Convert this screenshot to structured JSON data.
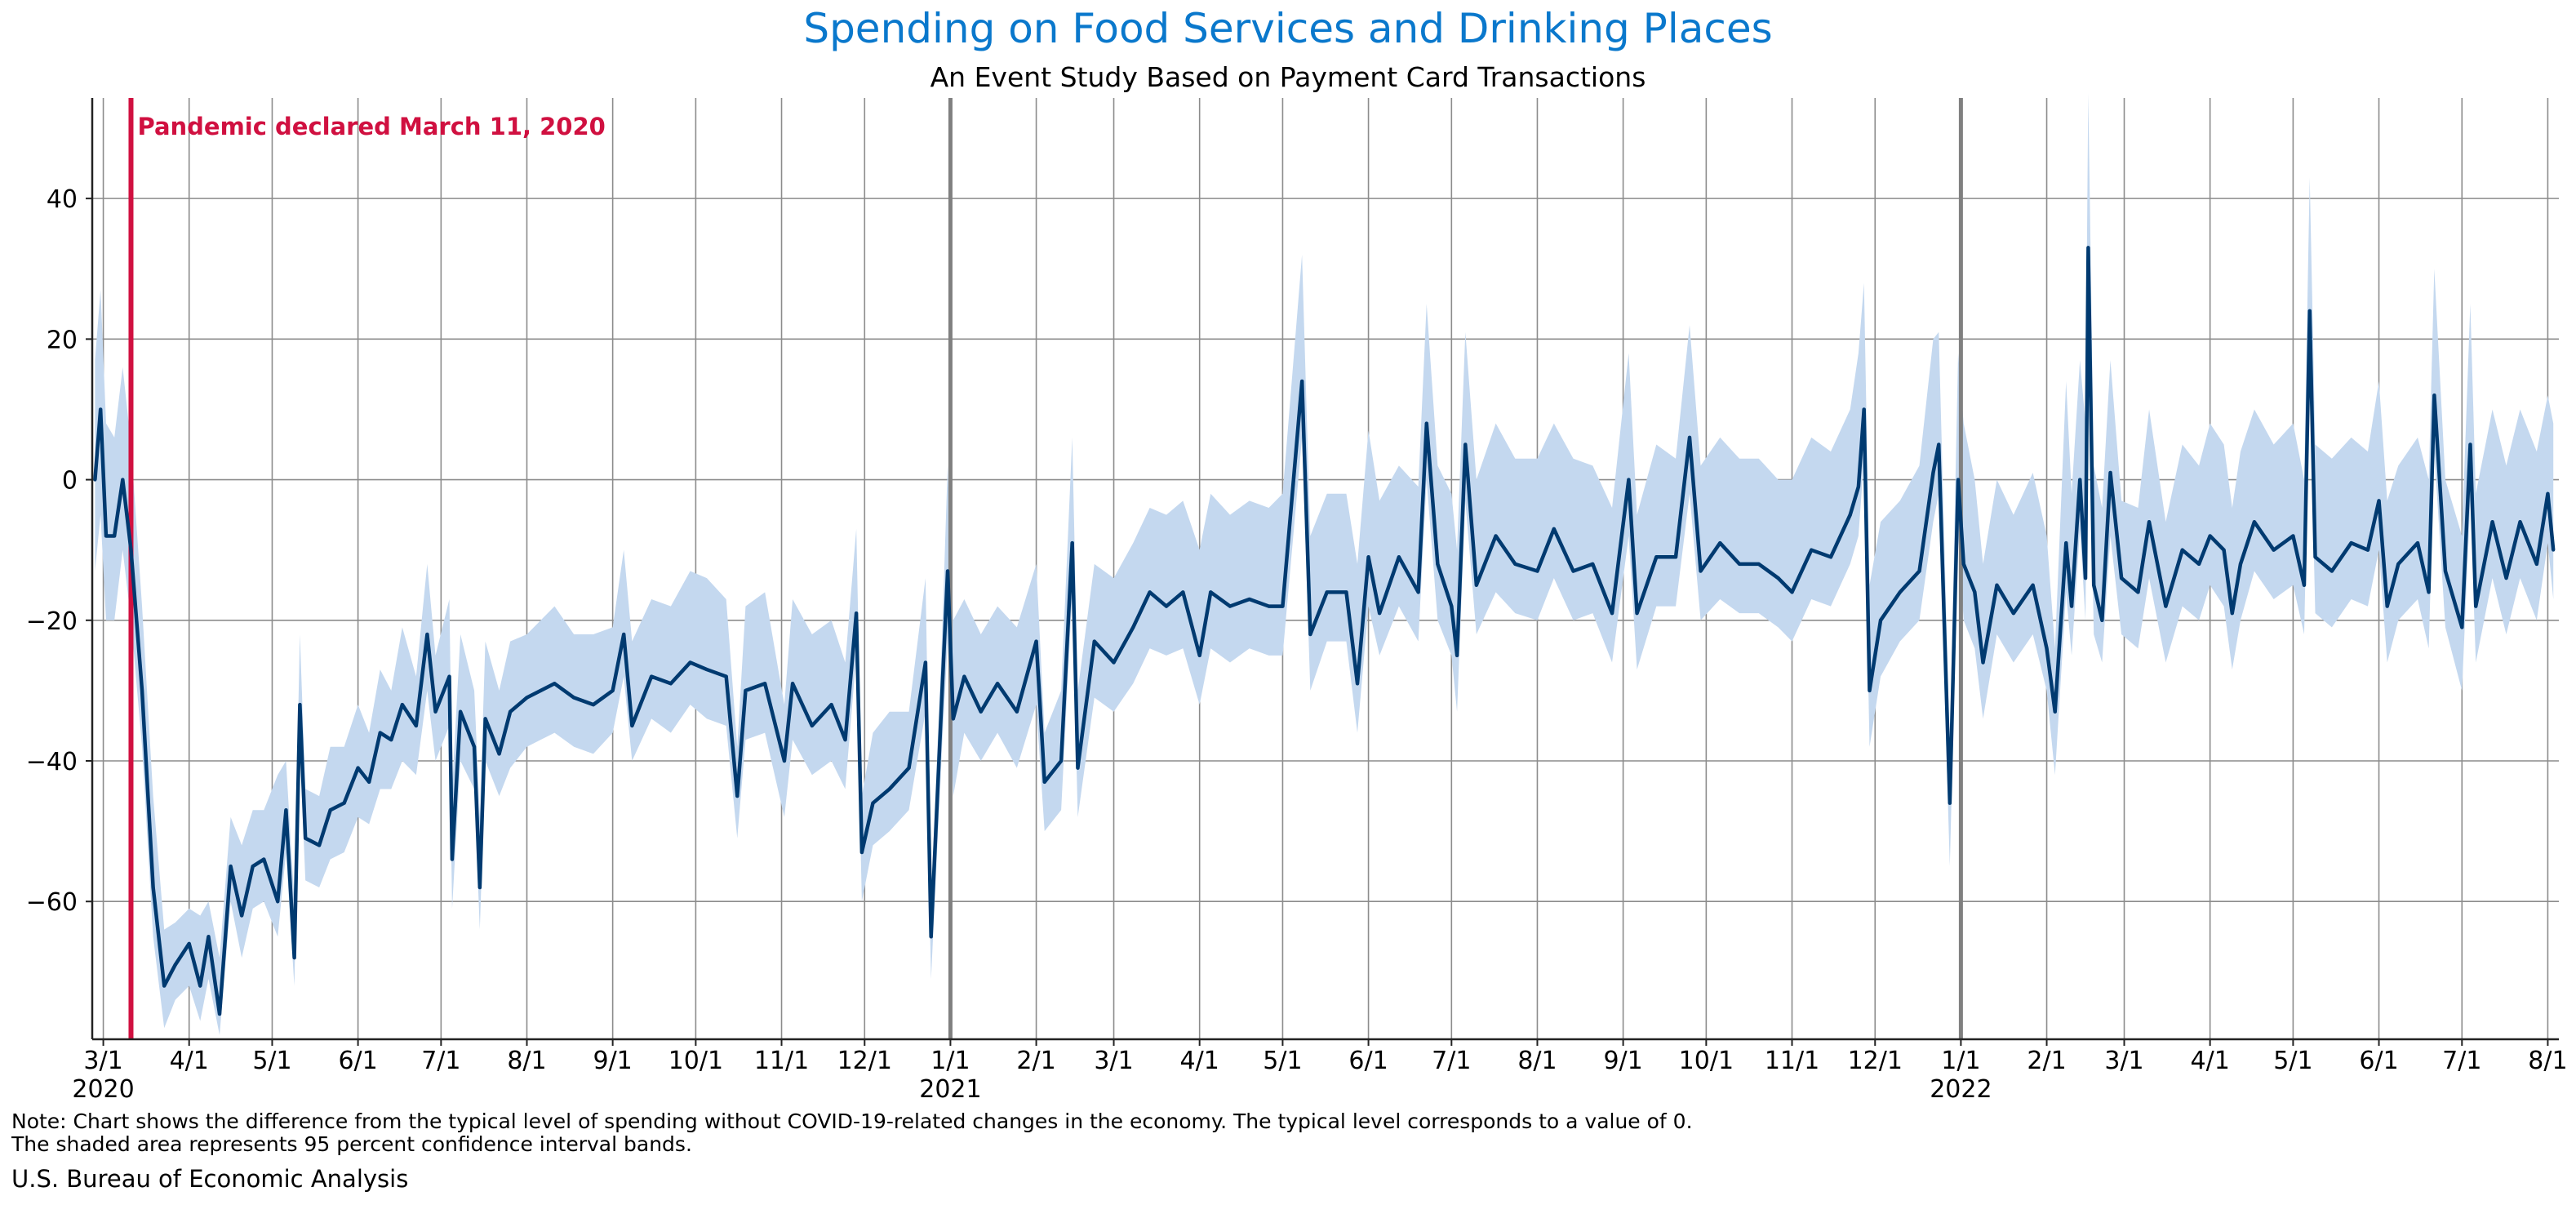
{
  "chart_data": {
    "type": "line",
    "title": "Spending on Food Services and Drinking Places",
    "subtitle": "An Event Study Based on Payment Card Transactions",
    "xlabel": "",
    "ylabel": "",
    "xlim": [
      "2020-02-26",
      "2022-08-05"
    ],
    "ylim": [
      -79.6,
      54.3
    ],
    "grid": true,
    "y_ticks": [
      40,
      20,
      0,
      -20,
      -40,
      -60
    ],
    "y_tick_labels": [
      "40",
      "20",
      "0",
      "−20",
      "−40",
      "−60"
    ],
    "x_ticks": [
      {
        "date": "2020-03-01",
        "label": "3/1",
        "year": "2020"
      },
      {
        "date": "2020-04-01",
        "label": "4/1"
      },
      {
        "date": "2020-05-01",
        "label": "5/1"
      },
      {
        "date": "2020-06-01",
        "label": "6/1"
      },
      {
        "date": "2020-07-01",
        "label": "7/1"
      },
      {
        "date": "2020-08-01",
        "label": "8/1"
      },
      {
        "date": "2020-09-01",
        "label": "9/1"
      },
      {
        "date": "2020-10-01",
        "label": "10/1"
      },
      {
        "date": "2020-11-01",
        "label": "11/1"
      },
      {
        "date": "2020-12-01",
        "label": "12/1"
      },
      {
        "date": "2021-01-01",
        "label": "1/1",
        "year": "2021"
      },
      {
        "date": "2021-02-01",
        "label": "2/1"
      },
      {
        "date": "2021-03-01",
        "label": "3/1"
      },
      {
        "date": "2021-04-01",
        "label": "4/1"
      },
      {
        "date": "2021-05-01",
        "label": "5/1"
      },
      {
        "date": "2021-06-01",
        "label": "6/1"
      },
      {
        "date": "2021-07-01",
        "label": "7/1"
      },
      {
        "date": "2021-08-01",
        "label": "8/1"
      },
      {
        "date": "2021-09-01",
        "label": "9/1"
      },
      {
        "date": "2021-10-01",
        "label": "10/1"
      },
      {
        "date": "2021-11-01",
        "label": "11/1"
      },
      {
        "date": "2021-12-01",
        "label": "12/1"
      },
      {
        "date": "2022-01-01",
        "label": "1/1",
        "year": "2022"
      },
      {
        "date": "2022-02-01",
        "label": "2/1"
      },
      {
        "date": "2022-03-01",
        "label": "3/1"
      },
      {
        "date": "2022-04-01",
        "label": "4/1"
      },
      {
        "date": "2022-05-01",
        "label": "5/1"
      },
      {
        "date": "2022-06-01",
        "label": "6/1"
      },
      {
        "date": "2022-07-01",
        "label": "7/1"
      },
      {
        "date": "2022-08-01",
        "label": "8/1"
      }
    ],
    "year_lines": [
      "2021-01-01",
      "2022-01-01"
    ],
    "event": {
      "date": "2020-03-11",
      "label": "Pandemic declared March 11, 2020",
      "color": "#d01040"
    },
    "colors": {
      "line": "#003a70",
      "band": "#c4d8ef",
      "grid": "#8c8c8c",
      "year_line": "#808080"
    },
    "series_fields": [
      "date",
      "value",
      "ci_low",
      "ci_high"
    ],
    "series": [
      [
        "2020-02-27",
        0,
        -13,
        17
      ],
      [
        "2020-02-29",
        10,
        -5,
        27
      ],
      [
        "2020-03-02",
        -8,
        -20,
        8
      ],
      [
        "2020-03-05",
        -8,
        -20,
        6
      ],
      [
        "2020-03-08",
        0,
        -10,
        16
      ],
      [
        "2020-03-11",
        -10,
        -20,
        5
      ],
      [
        "2020-03-15",
        -30,
        -38,
        -18
      ],
      [
        "2020-03-19",
        -58,
        -65,
        -45
      ],
      [
        "2020-03-23",
        -72,
        -78,
        -64
      ],
      [
        "2020-03-27",
        -69,
        -74,
        -63
      ],
      [
        "2020-04-01",
        -66,
        -72,
        -61
      ],
      [
        "2020-04-05",
        -72,
        -77,
        -62
      ],
      [
        "2020-04-08",
        -65,
        -71,
        -60
      ],
      [
        "2020-04-12",
        -76,
        -79,
        -68
      ],
      [
        "2020-04-16",
        -55,
        -60,
        -48
      ],
      [
        "2020-04-20",
        -62,
        -68,
        -52
      ],
      [
        "2020-04-24",
        -55,
        -61,
        -47
      ],
      [
        "2020-04-28",
        -54,
        -60,
        -47
      ],
      [
        "2020-05-03",
        -60,
        -65,
        -42
      ],
      [
        "2020-05-06",
        -47,
        -53,
        -40
      ],
      [
        "2020-05-09",
        -68,
        -72,
        -60
      ],
      [
        "2020-05-11",
        -32,
        -38,
        -22
      ],
      [
        "2020-05-13",
        -51,
        -57,
        -44
      ],
      [
        "2020-05-18",
        -52,
        -58,
        -45
      ],
      [
        "2020-05-22",
        -47,
        -54,
        -38
      ],
      [
        "2020-05-27",
        -46,
        -53,
        -38
      ],
      [
        "2020-06-01",
        -41,
        -48,
        -32
      ],
      [
        "2020-06-05",
        -43,
        -49,
        -36
      ],
      [
        "2020-06-09",
        -36,
        -44,
        -27
      ],
      [
        "2020-06-13",
        -37,
        -44,
        -30
      ],
      [
        "2020-06-17",
        -32,
        -40,
        -21
      ],
      [
        "2020-06-22",
        -35,
        -42,
        -28
      ],
      [
        "2020-06-26",
        -22,
        -30,
        -12
      ],
      [
        "2020-06-29",
        -33,
        -40,
        -25
      ],
      [
        "2020-07-04",
        -28,
        -35,
        -17
      ],
      [
        "2020-07-05",
        -54,
        -61,
        -44
      ],
      [
        "2020-07-08",
        -33,
        -40,
        -22
      ],
      [
        "2020-07-13",
        -38,
        -44,
        -30
      ],
      [
        "2020-07-15",
        -58,
        -64,
        -48
      ],
      [
        "2020-07-17",
        -34,
        -40,
        -23
      ],
      [
        "2020-07-22",
        -39,
        -45,
        -30
      ],
      [
        "2020-07-26",
        -33,
        -41,
        -23
      ],
      [
        "2020-08-01",
        -31,
        -38,
        -22
      ],
      [
        "2020-08-06",
        -30,
        -37,
        -20
      ],
      [
        "2020-08-11",
        -29,
        -36,
        -18
      ],
      [
        "2020-08-18",
        -31,
        -38,
        -22
      ],
      [
        "2020-08-25",
        -32,
        -39,
        -22
      ],
      [
        "2020-09-01",
        -30,
        -36,
        -21
      ],
      [
        "2020-09-05",
        -22,
        -28,
        -10
      ],
      [
        "2020-09-08",
        -35,
        -40,
        -23
      ],
      [
        "2020-09-15",
        -28,
        -34,
        -17
      ],
      [
        "2020-09-22",
        -29,
        -36,
        -18
      ],
      [
        "2020-09-29",
        -26,
        -32,
        -13
      ],
      [
        "2020-10-05",
        -27,
        -34,
        -14
      ],
      [
        "2020-10-12",
        -28,
        -35,
        -17
      ],
      [
        "2020-10-16",
        -45,
        -51,
        -38
      ],
      [
        "2020-10-19",
        -30,
        -37,
        -18
      ],
      [
        "2020-10-26",
        -29,
        -36,
        -16
      ],
      [
        "2020-11-02",
        -40,
        -48,
        -32
      ],
      [
        "2020-11-05",
        -29,
        -37,
        -17
      ],
      [
        "2020-11-12",
        -35,
        -42,
        -22
      ],
      [
        "2020-11-19",
        -32,
        -40,
        -20
      ],
      [
        "2020-11-24",
        -37,
        -44,
        -26
      ],
      [
        "2020-11-28",
        -19,
        -25,
        -7
      ],
      [
        "2020-11-30",
        -53,
        -60,
        -45
      ],
      [
        "2020-12-04",
        -46,
        -52,
        -36
      ],
      [
        "2020-12-10",
        -44,
        -50,
        -33
      ],
      [
        "2020-12-17",
        -41,
        -47,
        -33
      ],
      [
        "2020-12-23",
        -26,
        -33,
        -14
      ],
      [
        "2020-12-25",
        -65,
        -71,
        -60
      ],
      [
        "2020-12-29",
        -30,
        -38,
        -22
      ],
      [
        "2020-12-31",
        -13,
        -23,
        2
      ],
      [
        "2021-01-02",
        -34,
        -45,
        -20
      ],
      [
        "2021-01-06",
        -28,
        -36,
        -17
      ],
      [
        "2021-01-12",
        -33,
        -40,
        -22
      ],
      [
        "2021-01-18",
        -29,
        -36,
        -18
      ],
      [
        "2021-01-25",
        -33,
        -41,
        -21
      ],
      [
        "2021-02-01",
        -23,
        -32,
        -12
      ],
      [
        "2021-02-04",
        -43,
        -50,
        -36
      ],
      [
        "2021-02-10",
        -40,
        -47,
        -30
      ],
      [
        "2021-02-14",
        -9,
        -16,
        6
      ],
      [
        "2021-02-16",
        -41,
        -48,
        -30
      ],
      [
        "2021-02-22",
        -23,
        -31,
        -12
      ],
      [
        "2021-03-01",
        -26,
        -33,
        -14
      ],
      [
        "2021-03-08",
        -21,
        -29,
        -9
      ],
      [
        "2021-03-14",
        -16,
        -24,
        -4
      ],
      [
        "2021-03-20",
        -18,
        -25,
        -5
      ],
      [
        "2021-03-26",
        -16,
        -24,
        -3
      ],
      [
        "2021-04-01",
        -25,
        -32,
        -10
      ],
      [
        "2021-04-05",
        -16,
        -24,
        -2
      ],
      [
        "2021-04-12",
        -18,
        -26,
        -5
      ],
      [
        "2021-04-19",
        -17,
        -24,
        -3
      ],
      [
        "2021-04-26",
        -18,
        -25,
        -4
      ],
      [
        "2021-05-01",
        -18,
        -25,
        -2
      ],
      [
        "2021-05-08",
        14,
        6,
        32
      ],
      [
        "2021-05-11",
        -22,
        -30,
        -8
      ],
      [
        "2021-05-17",
        -16,
        -23,
        -2
      ],
      [
        "2021-05-24",
        -16,
        -23,
        -2
      ],
      [
        "2021-05-28",
        -29,
        -36,
        -12
      ],
      [
        "2021-06-01",
        -11,
        -18,
        7
      ],
      [
        "2021-06-05",
        -19,
        -25,
        -3
      ],
      [
        "2021-06-12",
        -11,
        -18,
        2
      ],
      [
        "2021-06-19",
        -16,
        -23,
        -1
      ],
      [
        "2021-06-22",
        8,
        0,
        25
      ],
      [
        "2021-06-26",
        -12,
        -20,
        2
      ],
      [
        "2021-07-01",
        -18,
        -25,
        -2
      ],
      [
        "2021-07-03",
        -25,
        -33,
        -10
      ],
      [
        "2021-07-06",
        5,
        -3,
        21
      ],
      [
        "2021-07-10",
        -15,
        -22,
        0
      ],
      [
        "2021-07-17",
        -8,
        -16,
        8
      ],
      [
        "2021-07-24",
        -12,
        -19,
        3
      ],
      [
        "2021-08-01",
        -13,
        -20,
        3
      ],
      [
        "2021-08-07",
        -7,
        -14,
        8
      ],
      [
        "2021-08-14",
        -13,
        -20,
        3
      ],
      [
        "2021-08-21",
        -12,
        -19,
        2
      ],
      [
        "2021-08-28",
        -19,
        -26,
        -4
      ],
      [
        "2021-09-03",
        0,
        -8,
        18
      ],
      [
        "2021-09-06",
        -19,
        -27,
        -5
      ],
      [
        "2021-09-13",
        -11,
        -18,
        5
      ],
      [
        "2021-09-20",
        -11,
        -18,
        3
      ],
      [
        "2021-09-25",
        6,
        -2,
        22
      ],
      [
        "2021-09-29",
        -13,
        -20,
        2
      ],
      [
        "2021-10-06",
        -9,
        -17,
        6
      ],
      [
        "2021-10-13",
        -12,
        -19,
        3
      ],
      [
        "2021-10-20",
        -12,
        -19,
        3
      ],
      [
        "2021-10-27",
        -14,
        -21,
        0
      ],
      [
        "2021-11-01",
        -16,
        -23,
        0
      ],
      [
        "2021-11-08",
        -10,
        -17,
        6
      ],
      [
        "2021-11-15",
        -11,
        -18,
        4
      ],
      [
        "2021-11-22",
        -5,
        -12,
        10
      ],
      [
        "2021-11-25",
        -1,
        -8,
        18
      ],
      [
        "2021-11-27",
        10,
        3,
        28
      ],
      [
        "2021-11-29",
        -30,
        -38,
        -15
      ],
      [
        "2021-12-03",
        -20,
        -28,
        -6
      ],
      [
        "2021-12-10",
        -16,
        -23,
        -3
      ],
      [
        "2021-12-17",
        -13,
        -20,
        2
      ],
      [
        "2021-12-22",
        1,
        -6,
        20
      ],
      [
        "2021-12-24",
        5,
        -2,
        21
      ],
      [
        "2021-12-28",
        -46,
        -55,
        -38
      ],
      [
        "2021-12-31",
        0,
        -8,
        18
      ],
      [
        "2022-01-02",
        -12,
        -20,
        8
      ],
      [
        "2022-01-06",
        -16,
        -24,
        0
      ],
      [
        "2022-01-09",
        -26,
        -34,
        -12
      ],
      [
        "2022-01-14",
        -15,
        -22,
        0
      ],
      [
        "2022-01-20",
        -19,
        -26,
        -5
      ],
      [
        "2022-01-27",
        -15,
        -22,
        1
      ],
      [
        "2022-02-01",
        -24,
        -30,
        -8
      ],
      [
        "2022-02-04",
        -33,
        -42,
        -24
      ],
      [
        "2022-02-08",
        -9,
        -16,
        14
      ],
      [
        "2022-02-10",
        -18,
        -25,
        -2
      ],
      [
        "2022-02-13",
        0,
        -7,
        17
      ],
      [
        "2022-02-15",
        -14,
        -20,
        8
      ],
      [
        "2022-02-16",
        33,
        20,
        55
      ],
      [
        "2022-02-18",
        -15,
        -22,
        2
      ],
      [
        "2022-02-21",
        -20,
        -26,
        -4
      ],
      [
        "2022-02-24",
        1,
        -8,
        17
      ],
      [
        "2022-02-28",
        -14,
        -22,
        -3
      ],
      [
        "2022-03-06",
        -16,
        -24,
        -4
      ],
      [
        "2022-03-10",
        -6,
        -14,
        10
      ],
      [
        "2022-03-16",
        -18,
        -26,
        -6
      ],
      [
        "2022-03-22",
        -10,
        -18,
        5
      ],
      [
        "2022-03-28",
        -12,
        -20,
        2
      ],
      [
        "2022-04-01",
        -8,
        -15,
        8
      ],
      [
        "2022-04-06",
        -10,
        -18,
        5
      ],
      [
        "2022-04-09",
        -19,
        -27,
        -4
      ],
      [
        "2022-04-12",
        -12,
        -20,
        4
      ],
      [
        "2022-04-17",
        -6,
        -13,
        10
      ],
      [
        "2022-04-24",
        -10,
        -17,
        5
      ],
      [
        "2022-05-01",
        -8,
        -15,
        8
      ],
      [
        "2022-05-05",
        -15,
        -22,
        0
      ],
      [
        "2022-05-07",
        24,
        15,
        43
      ],
      [
        "2022-05-09",
        -11,
        -19,
        5
      ],
      [
        "2022-05-15",
        -13,
        -21,
        3
      ],
      [
        "2022-05-22",
        -9,
        -17,
        6
      ],
      [
        "2022-05-28",
        -10,
        -18,
        4
      ],
      [
        "2022-06-01",
        -3,
        -10,
        14
      ],
      [
        "2022-06-04",
        -18,
        -26,
        -3
      ],
      [
        "2022-06-08",
        -12,
        -20,
        2
      ],
      [
        "2022-06-15",
        -9,
        -17,
        6
      ],
      [
        "2022-06-19",
        -16,
        -24,
        0
      ],
      [
        "2022-06-21",
        12,
        4,
        30
      ],
      [
        "2022-06-25",
        -13,
        -21,
        0
      ],
      [
        "2022-07-01",
        -21,
        -30,
        -8
      ],
      [
        "2022-07-04",
        5,
        -3,
        25
      ],
      [
        "2022-07-06",
        -18,
        -26,
        -2
      ],
      [
        "2022-07-12",
        -6,
        -14,
        10
      ],
      [
        "2022-07-17",
        -14,
        -22,
        2
      ],
      [
        "2022-07-22",
        -6,
        -14,
        10
      ],
      [
        "2022-07-28",
        -12,
        -20,
        4
      ],
      [
        "2022-08-01",
        -2,
        -9,
        12
      ],
      [
        "2022-08-03",
        -10,
        -17,
        8
      ]
    ]
  },
  "footer": {
    "note_line1": "Note: Chart shows the difference from the typical level of spending without COVID-19-related changes in the economy. The typical level corresponds to a value of 0.",
    "note_line2": "The shaded area represents 95 percent confidence interval bands.",
    "source": "U.S. Bureau of Economic Analysis"
  }
}
